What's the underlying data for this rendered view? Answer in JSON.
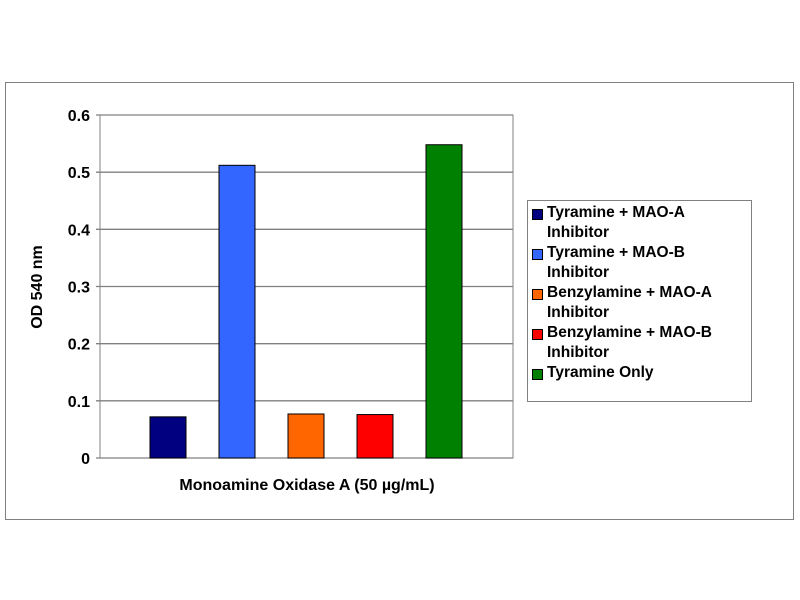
{
  "chart_data": {
    "type": "bar",
    "title": "",
    "xlabel": "Monoamine Oxidase A (50 µg/mL)",
    "ylabel": "OD 540 nm",
    "ylim": [
      0,
      0.6
    ],
    "yticks": [
      "0",
      "0.1",
      "0.2",
      "0.3",
      "0.4",
      "0.5",
      "0.6"
    ],
    "grid": true,
    "legend_position": "right",
    "series": [
      {
        "name": "Tyramine + MAO-A Inhibitor",
        "value": 0.072,
        "color": "#000080"
      },
      {
        "name": "Tyramine + MAO-B Inhibitor",
        "value": 0.512,
        "color": "#3366FF"
      },
      {
        "name": "Benzylamine + MAO-A Inhibitor",
        "value": 0.077,
        "color": "#FF6600"
      },
      {
        "name": "Benzylamine + MAO-B Inhibitor",
        "value": 0.076,
        "color": "#FF0000"
      },
      {
        "name": "Tyramine Only",
        "value": 0.548,
        "color": "#008000"
      }
    ]
  }
}
